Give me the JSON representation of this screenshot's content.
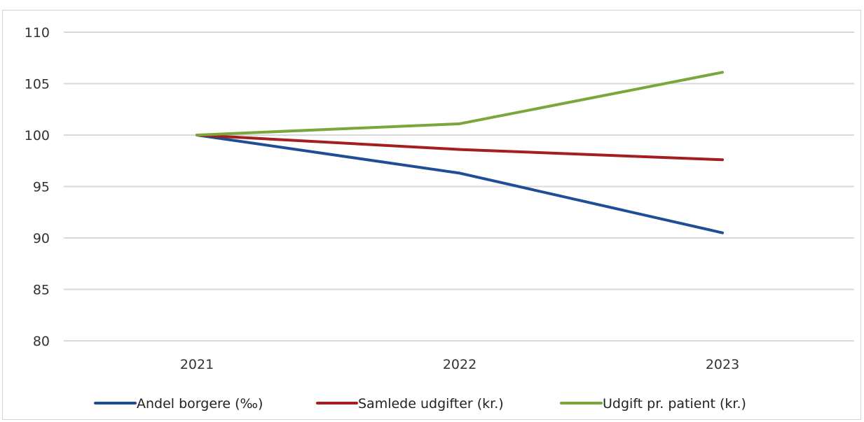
{
  "chart_data": {
    "type": "line",
    "title": "",
    "xlabel": "",
    "ylabel": "",
    "categories": [
      "2021",
      "2022",
      "2023"
    ],
    "ylim": [
      80,
      110
    ],
    "yticks": [
      80,
      85,
      90,
      95,
      100,
      105,
      110
    ],
    "grid": true,
    "legend_position": "bottom",
    "series": [
      {
        "name": "Andel borgere (‰)",
        "color": "#1f4e96",
        "values": [
          100,
          96.3,
          90.5
        ]
      },
      {
        "name": "Samlede udgifter (kr.)",
        "color": "#a31f1f",
        "values": [
          100,
          98.6,
          97.6
        ]
      },
      {
        "name": "Udgift pr. patient (kr.)",
        "color": "#7aa63a",
        "values": [
          100,
          101.1,
          106.1
        ]
      }
    ]
  }
}
